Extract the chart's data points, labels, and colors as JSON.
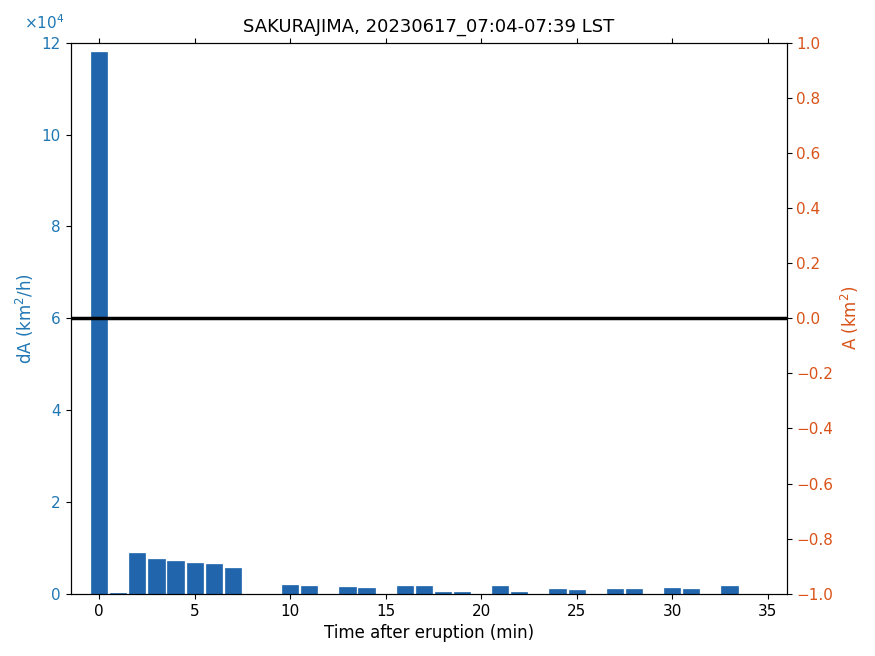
{
  "title": "SAKURAJIMA, 20230617_07:04-07:39 LST",
  "xlabel": "Time after eruption (min)",
  "ylabel_left": "dA (km$^2$/h)",
  "ylabel_right": "A (km$^2$)",
  "bar_positions": [
    0,
    1,
    2,
    3,
    4,
    5,
    6,
    7,
    8,
    9,
    10,
    11,
    12,
    13,
    14,
    15,
    16,
    17,
    18,
    19,
    20,
    21,
    22,
    23,
    24,
    25,
    26,
    27,
    28,
    29,
    30,
    31,
    32,
    33,
    34,
    35
  ],
  "bar_values": [
    118000,
    200,
    8800,
    7500,
    7200,
    6800,
    6400,
    5600,
    0,
    0,
    1900,
    1700,
    0,
    1400,
    1300,
    0,
    1800,
    1600,
    500,
    500,
    0,
    1700,
    500,
    0,
    1100,
    900,
    0,
    1100,
    1000,
    0,
    1200,
    1100,
    0,
    1700,
    0,
    0
  ],
  "bar_color": "#2166ac",
  "xlim": [
    -1.5,
    36
  ],
  "ylim_left": [
    0,
    120000
  ],
  "ylim_right": [
    -1,
    1
  ],
  "xticks": [
    0,
    5,
    10,
    15,
    20,
    25,
    30,
    35
  ],
  "yticks_left": [
    0,
    20000,
    40000,
    60000,
    80000,
    100000,
    120000
  ],
  "ytick_labels_left": [
    "0",
    "2",
    "4",
    "6",
    "8",
    "10",
    "12"
  ],
  "ytick_scale_label": "×10$^4$",
  "title_fontsize": 13,
  "label_fontsize": 12,
  "tick_fontsize": 11,
  "bar_width": 0.85,
  "line_color": "black",
  "line_width": 2.5,
  "left_color": "#1f77b4",
  "right_color": "#d95319",
  "line_y_left": 60000,
  "right_ticks": [
    -1.0,
    -0.8,
    -0.6,
    -0.4,
    -0.2,
    0.0,
    0.2,
    0.4,
    0.6,
    0.8,
    1.0
  ],
  "bg_color": "white"
}
